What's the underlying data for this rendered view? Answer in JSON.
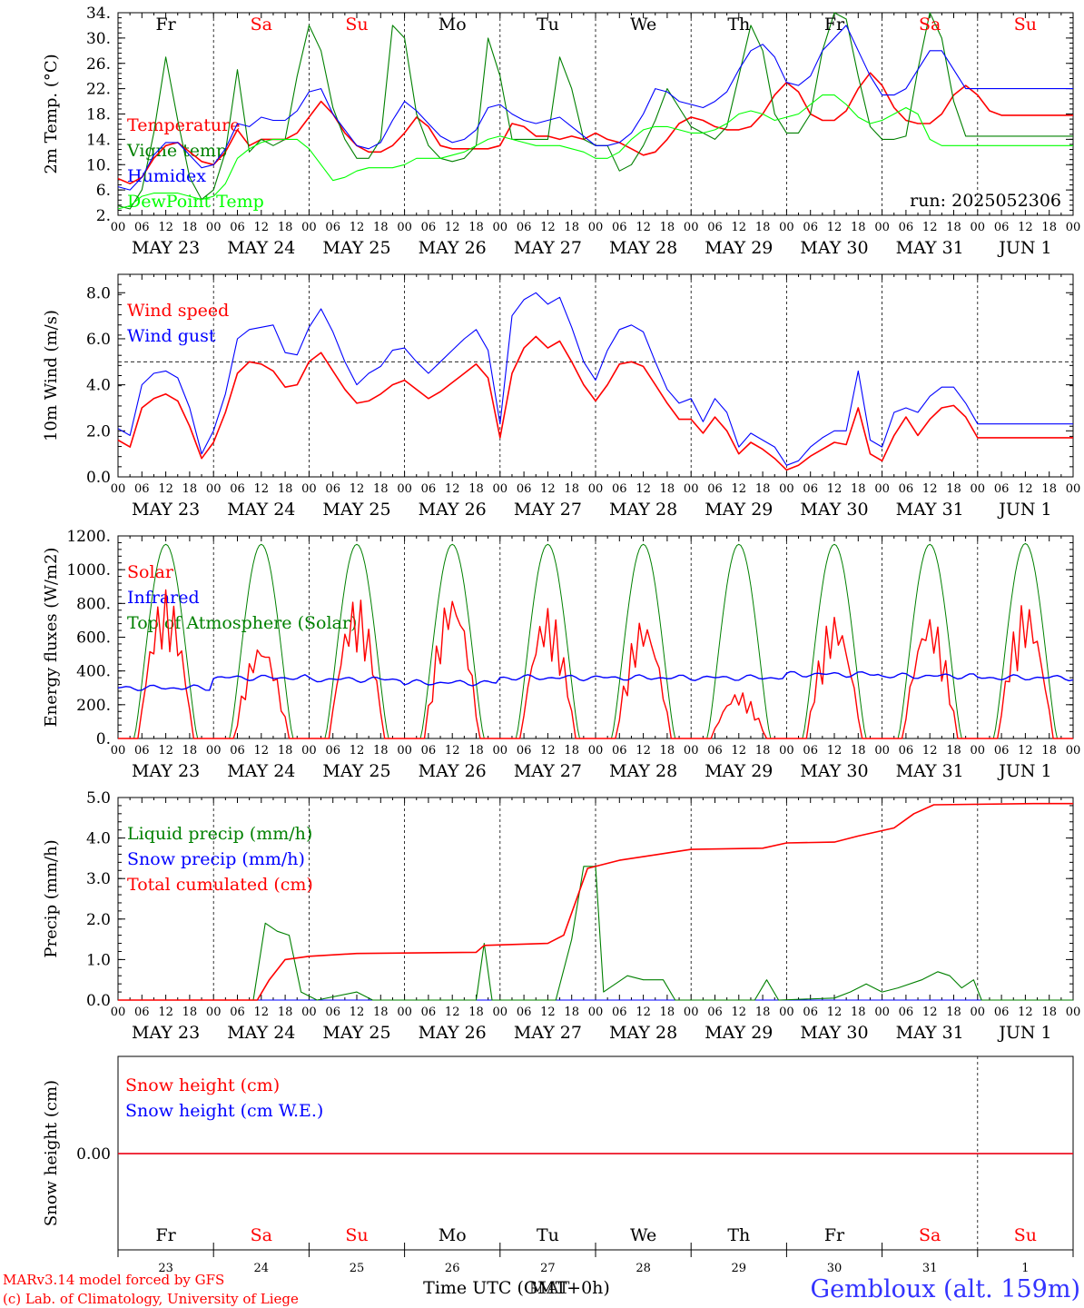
{
  "run_label": "run: 2025052306",
  "weekdays": [
    {
      "label": "Fr",
      "color": "#000000"
    },
    {
      "label": "Sa",
      "color": "#ff0000"
    },
    {
      "label": "Su",
      "color": "#ff0000"
    },
    {
      "label": "Mo",
      "color": "#000000"
    },
    {
      "label": "Tu",
      "color": "#000000"
    },
    {
      "label": "We",
      "color": "#000000"
    },
    {
      "label": "Th",
      "color": "#000000"
    },
    {
      "label": "Fr",
      "color": "#000000"
    },
    {
      "label": "Sa",
      "color": "#ff0000"
    },
    {
      "label": "Su",
      "color": "#ff0000"
    }
  ],
  "dates": [
    "MAY 23",
    "MAY 24",
    "MAY 25",
    "MAY 26",
    "MAY 27",
    "MAY 28",
    "MAY 29",
    "MAY 30",
    "MAY 31",
    "JUN  1"
  ],
  "day_numbers": [
    "23",
    "24",
    "25",
    "26",
    "27",
    "28",
    "29",
    "30",
    "31",
    "1"
  ],
  "hour_ticks": [
    "00",
    "06",
    "12",
    "18"
  ],
  "final_hour_tick": "00",
  "footer": {
    "model_line": "MARv3.14 model forced by GFS",
    "copyright_line": "(c) Lab. of Climatology, University of Liege",
    "time_axis_label": "Time UTC (GMT+0h)",
    "time_axis_overprint": "MAT",
    "location": "Gembloux (alt. 159m)"
  },
  "chart_data": [
    {
      "type": "line",
      "ylabel": "2m Temp. (°C)",
      "ylim": [
        2,
        34
      ],
      "yticks": [
        "2.",
        "6.",
        "10.",
        "14.",
        "18.",
        "22.",
        "26.",
        "30.",
        "34."
      ],
      "x_hours": [
        0,
        3,
        6,
        9,
        12,
        15,
        18,
        21,
        24,
        27,
        30,
        33,
        36,
        39,
        42,
        45,
        48,
        51,
        54,
        57,
        60,
        63,
        66,
        69,
        72,
        75,
        78,
        81,
        84,
        87,
        90,
        93,
        96,
        99,
        102,
        105,
        108,
        111,
        114,
        117,
        120,
        123,
        126,
        129,
        132,
        135,
        138,
        141,
        144,
        147,
        150,
        153,
        156,
        159,
        162,
        165,
        168,
        171,
        174,
        177,
        180,
        183,
        186,
        189,
        192,
        195,
        198,
        201,
        204,
        207,
        210,
        213,
        216,
        219,
        222,
        225,
        228,
        231,
        234,
        237,
        240
      ],
      "series": [
        {
          "name": "Temperature",
          "color": "#ff0000",
          "values": [
            7.8,
            7,
            8,
            11,
            13,
            13.5,
            12,
            10.5,
            10,
            12,
            15.5,
            13,
            14,
            14,
            14,
            15,
            17.5,
            20,
            18,
            15,
            13,
            12,
            12,
            13,
            15,
            17.5,
            16,
            13,
            12.5,
            12.5,
            12.5,
            12.5,
            13,
            16.5,
            16,
            14.5,
            14.5,
            14,
            14.5,
            14,
            15,
            14,
            13.5,
            12.5,
            11.5,
            12,
            14,
            16.5,
            17.5,
            17,
            16,
            15.5,
            15.5,
            16,
            18,
            21,
            23,
            21.5,
            18,
            17,
            17,
            18.5,
            22,
            24.5,
            22.5,
            19,
            17,
            16.5,
            16.5,
            18,
            21,
            22.5,
            21,
            18.5,
            17.8,
            17.8,
            17.8,
            17.8,
            17.8,
            17.8,
            17.8
          ]
        },
        {
          "name": "Vigne temp",
          "color": "#008000",
          "values": [
            3.5,
            3,
            6,
            15,
            27,
            17,
            8,
            4.5,
            6,
            12,
            25,
            12,
            14,
            13,
            14,
            24,
            32,
            28,
            19,
            14,
            11,
            11,
            14,
            32,
            30,
            18,
            13,
            11,
            10.5,
            11,
            13,
            30,
            24,
            14,
            14,
            14,
            14,
            27,
            22,
            14,
            13,
            13,
            9,
            10,
            13,
            17,
            22,
            19,
            16,
            15,
            14,
            16,
            24,
            32,
            28,
            18,
            15,
            15,
            18,
            28,
            35,
            33,
            24,
            16,
            14,
            14,
            14.5,
            25,
            34,
            30,
            20,
            14.5,
            14.5,
            14.5,
            14.5,
            14.5,
            14.5,
            14.5,
            14.5,
            14.5,
            14.5
          ]
        },
        {
          "name": "Humidex",
          "color": "#0000ff",
          "values": [
            6.5,
            6,
            8,
            11.5,
            13.5,
            13.5,
            11.5,
            9.5,
            10,
            12.5,
            16.5,
            16,
            17.5,
            17,
            17,
            18.5,
            21.5,
            22,
            18,
            15.5,
            13,
            12.5,
            13.5,
            17,
            20,
            18.5,
            16.5,
            14.5,
            13.5,
            14,
            15.5,
            19,
            19.5,
            18,
            17,
            16.5,
            17,
            17.5,
            16,
            14.5,
            13,
            13,
            13.5,
            15,
            18,
            22,
            21.5,
            20,
            19.5,
            19,
            20,
            21.5,
            25,
            28,
            29,
            27,
            23,
            22.5,
            24,
            28,
            30,
            32,
            28,
            24,
            21,
            21,
            22,
            25,
            28,
            28,
            25,
            22,
            22,
            22,
            22,
            22,
            22,
            22,
            22,
            22,
            22
          ]
        },
        {
          "name": "DewPoint Temp",
          "color": "#00ff00",
          "values": [
            3,
            3.5,
            5,
            5.5,
            5.5,
            5.5,
            5,
            4.5,
            5,
            7,
            11,
            12.5,
            13.5,
            14,
            14,
            14,
            12.5,
            10,
            7.5,
            8,
            9,
            9.5,
            9.5,
            9.5,
            10,
            11,
            11,
            11,
            11.5,
            12,
            13,
            14,
            14.5,
            14,
            13.5,
            13,
            13,
            13,
            12.5,
            12,
            11,
            11,
            12,
            14,
            15.5,
            16,
            16,
            15.5,
            15,
            15,
            15.5,
            16.5,
            18,
            18.5,
            18,
            17,
            17.5,
            18,
            19.5,
            21,
            21,
            19.5,
            17.5,
            16.5,
            17,
            18,
            19,
            18,
            14,
            13,
            13,
            13,
            13,
            13,
            13,
            13,
            13,
            13,
            13,
            13,
            13
          ]
        }
      ]
    },
    {
      "type": "line",
      "ylabel": "10m Wind (m/s)",
      "ylim": [
        0,
        8.8
      ],
      "yticks": [
        "0.0",
        "2.0",
        "4.0",
        "6.0",
        "8.0"
      ],
      "reference_line": 5,
      "x_hours": [
        0,
        3,
        6,
        9,
        12,
        15,
        18,
        21,
        24,
        27,
        30,
        33,
        36,
        39,
        42,
        45,
        48,
        51,
        54,
        57,
        60,
        63,
        66,
        69,
        72,
        75,
        78,
        81,
        84,
        87,
        90,
        93,
        96,
        99,
        102,
        105,
        108,
        111,
        114,
        117,
        120,
        123,
        126,
        129,
        132,
        135,
        138,
        141,
        144,
        147,
        150,
        153,
        156,
        159,
        162,
        165,
        168,
        171,
        174,
        177,
        180,
        183,
        186,
        189,
        192,
        195,
        198,
        201,
        204,
        207,
        210,
        213,
        216,
        219,
        222,
        225,
        228,
        231,
        234,
        237,
        240
      ],
      "series": [
        {
          "name": "Wind speed",
          "color": "#ff0000",
          "values": [
            1.6,
            1.3,
            3.0,
            3.4,
            3.6,
            3.3,
            2.2,
            0.8,
            1.5,
            2.8,
            4.5,
            5.0,
            4.9,
            4.6,
            3.9,
            4.0,
            5.0,
            5.4,
            4.6,
            3.8,
            3.2,
            3.3,
            3.6,
            4.0,
            4.2,
            3.8,
            3.4,
            3.7,
            4.1,
            4.5,
            4.9,
            4.3,
            1.7,
            4.5,
            5.6,
            6.1,
            5.6,
            5.9,
            5.0,
            4.0,
            3.3,
            4.0,
            4.9,
            5.0,
            4.8,
            4.0,
            3.2,
            2.5,
            2.5,
            1.9,
            2.6,
            2.0,
            1.0,
            1.5,
            1.2,
            0.8,
            0.3,
            0.5,
            0.9,
            1.2,
            1.5,
            1.4,
            3.0,
            1.0,
            0.7,
            1.8,
            2.6,
            1.8,
            2.5,
            3.0,
            3.1,
            2.6,
            1.7,
            1.7,
            1.7,
            1.7,
            1.7,
            1.7,
            1.7,
            1.7,
            1.7
          ]
        },
        {
          "name": "Wind gust",
          "color": "#0000ff",
          "values": [
            2.1,
            1.8,
            4.0,
            4.5,
            4.6,
            4.3,
            3.0,
            1.0,
            2.0,
            3.6,
            6.0,
            6.4,
            6.5,
            6.6,
            5.4,
            5.3,
            6.5,
            7.3,
            6.3,
            5.0,
            4.0,
            4.5,
            4.8,
            5.5,
            5.6,
            5.0,
            4.5,
            5.0,
            5.5,
            6.0,
            6.4,
            5.5,
            2.3,
            7.0,
            7.7,
            8.0,
            7.5,
            7.8,
            6.5,
            5.0,
            4.2,
            5.5,
            6.4,
            6.6,
            6.3,
            5.0,
            3.8,
            3.2,
            3.4,
            2.4,
            3.4,
            2.8,
            1.3,
            1.9,
            1.6,
            1.3,
            0.5,
            0.7,
            1.3,
            1.7,
            2.0,
            2.0,
            4.6,
            1.6,
            1.3,
            2.8,
            3.0,
            2.8,
            3.5,
            3.9,
            3.9,
            3.2,
            2.3,
            2.3,
            2.3,
            2.3,
            2.3,
            2.3,
            2.3,
            2.3,
            2.3
          ]
        }
      ]
    },
    {
      "type": "line",
      "ylabel": "Energy fluxes (W/m2)",
      "ylim": [
        0,
        1200
      ],
      "yticks": [
        "0.",
        "200.",
        "400.",
        "600.",
        "800.",
        "1000.",
        "1200."
      ],
      "series": [
        {
          "name": "Solar",
          "color": "#ff0000",
          "daily_peaks": [
            880,
            580,
            840,
            880,
            780,
            720,
            280,
            740,
            740,
            810
          ]
        },
        {
          "name": "Infrared",
          "color": "#0000ff",
          "daily_levels": [
            300,
            360,
            350,
            330,
            360,
            360,
            360,
            380,
            370,
            360
          ]
        },
        {
          "name": "Top of Atmosphere (Solar)",
          "color": "#008000",
          "daily_peaks": [
            1150,
            1150,
            1150,
            1150,
            1150,
            1150,
            1150,
            1150,
            1150,
            1155
          ]
        }
      ]
    },
    {
      "type": "line",
      "ylabel": "Precip (mm/h)",
      "ylim": [
        0,
        5
      ],
      "yticks": [
        "0.0",
        "1.0",
        "2.0",
        "3.0",
        "4.0",
        "5.0"
      ],
      "series": [
        {
          "name": "Liquid precip (mm/h)",
          "color": "#008000",
          "points": [
            [
              0,
              0
            ],
            [
              34,
              0
            ],
            [
              37,
              1.9
            ],
            [
              40,
              1.7
            ],
            [
              43,
              1.6
            ],
            [
              46,
              0.2
            ],
            [
              50,
              0
            ],
            [
              60,
              0.2
            ],
            [
              64,
              0
            ],
            [
              90,
              0
            ],
            [
              92,
              1.4
            ],
            [
              94,
              0
            ],
            [
              110,
              0
            ],
            [
              114,
              1.5
            ],
            [
              117,
              3.3
            ],
            [
              120,
              3.3
            ],
            [
              122,
              0.2
            ],
            [
              128,
              0.6
            ],
            [
              132,
              0.5
            ],
            [
              137,
              0.5
            ],
            [
              140,
              0
            ],
            [
              160,
              0
            ],
            [
              163,
              0.5
            ],
            [
              166,
              0
            ],
            [
              180,
              0.05
            ],
            [
              184,
              0.2
            ],
            [
              188,
              0.4
            ],
            [
              192,
              0.2
            ],
            [
              196,
              0.3
            ],
            [
              202,
              0.5
            ],
            [
              206,
              0.7
            ],
            [
              209,
              0.6
            ],
            [
              212,
              0.3
            ],
            [
              215,
              0.5
            ],
            [
              217,
              0
            ],
            [
              240,
              0
            ]
          ]
        },
        {
          "name": "Snow precip (mm/h)",
          "color": "#0000ff",
          "points": [
            [
              0,
              0
            ],
            [
              240,
              0
            ]
          ]
        },
        {
          "name": "Total cumulated (cm)",
          "color": "#ff0000",
          "points": [
            [
              0,
              0
            ],
            [
              35,
              0
            ],
            [
              38,
              0.5
            ],
            [
              42,
              1.0
            ],
            [
              48,
              1.08
            ],
            [
              60,
              1.15
            ],
            [
              90,
              1.18
            ],
            [
              92,
              1.35
            ],
            [
              108,
              1.4
            ],
            [
              112,
              1.6
            ],
            [
              118,
              3.25
            ],
            [
              126,
              3.45
            ],
            [
              136,
              3.6
            ],
            [
              144,
              3.72
            ],
            [
              162,
              3.75
            ],
            [
              168,
              3.88
            ],
            [
              180,
              3.9
            ],
            [
              186,
              4.05
            ],
            [
              195,
              4.25
            ],
            [
              200,
              4.6
            ],
            [
              205,
              4.82
            ],
            [
              230,
              4.85
            ],
            [
              240,
              4.85
            ]
          ]
        }
      ]
    },
    {
      "type": "line",
      "ylabel": "Snow height (cm)",
      "yticks": [
        "0.00"
      ],
      "series": [
        {
          "name": "Snow height (cm)",
          "color": "#ff0000",
          "values": [
            0,
            0
          ]
        },
        {
          "name": "Snow height (cm W.E.)",
          "color": "#0000ff",
          "values": [
            0,
            0
          ]
        }
      ]
    }
  ]
}
